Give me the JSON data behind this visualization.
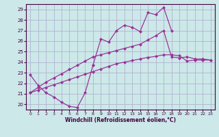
{
  "title": "",
  "xlabel": "Windchill (Refroidissement éolien,°C)",
  "background_color": "#cce8e8",
  "grid_color": "#aaaacc",
  "line_color": "#993399",
  "xlim": [
    -0.5,
    23.5
  ],
  "ylim": [
    19.5,
    29.5
  ],
  "yticks": [
    20,
    21,
    22,
    23,
    24,
    25,
    26,
    27,
    28,
    29
  ],
  "xticks": [
    0,
    1,
    2,
    3,
    4,
    5,
    6,
    7,
    8,
    9,
    10,
    11,
    12,
    13,
    14,
    15,
    16,
    17,
    18,
    19,
    20,
    21,
    22,
    23
  ],
  "line1_x": [
    0,
    1,
    2,
    3,
    4,
    5,
    6,
    7,
    8
  ],
  "line1_y": [
    22.8,
    21.8,
    21.1,
    20.7,
    20.2,
    19.8,
    19.7,
    21.1,
    23.7
  ],
  "line2_x": [
    8,
    9,
    10,
    11,
    12,
    13,
    14,
    15,
    16,
    17,
    18
  ],
  "line2_y": [
    23.7,
    26.2,
    25.9,
    27.0,
    27.5,
    27.3,
    26.9,
    28.7,
    28.5,
    29.2,
    27.0
  ],
  "line3_x": [
    0,
    1,
    2,
    3,
    4,
    5,
    6,
    7,
    8,
    9,
    10,
    11,
    12,
    13,
    14,
    15,
    16,
    17,
    18,
    19,
    20,
    21,
    22,
    23
  ],
  "line3_y": [
    21.1,
    21.6,
    22.1,
    22.5,
    22.9,
    23.3,
    23.7,
    24.1,
    24.5,
    24.7,
    24.9,
    25.1,
    25.3,
    25.5,
    25.7,
    26.1,
    26.5,
    27.0,
    24.5,
    24.4,
    24.5,
    24.3,
    24.3,
    24.2
  ],
  "line4_x": [
    0,
    1,
    2,
    3,
    4,
    5,
    6,
    7,
    8,
    9,
    10,
    11,
    12,
    13,
    14,
    15,
    16,
    17,
    18,
    19,
    20,
    21,
    22,
    23
  ],
  "line4_y": [
    21.1,
    21.35,
    21.6,
    21.85,
    22.1,
    22.35,
    22.6,
    22.85,
    23.1,
    23.35,
    23.6,
    23.85,
    24.0,
    24.15,
    24.3,
    24.45,
    24.55,
    24.7,
    24.7,
    24.6,
    24.1,
    24.2,
    24.2,
    24.2
  ]
}
